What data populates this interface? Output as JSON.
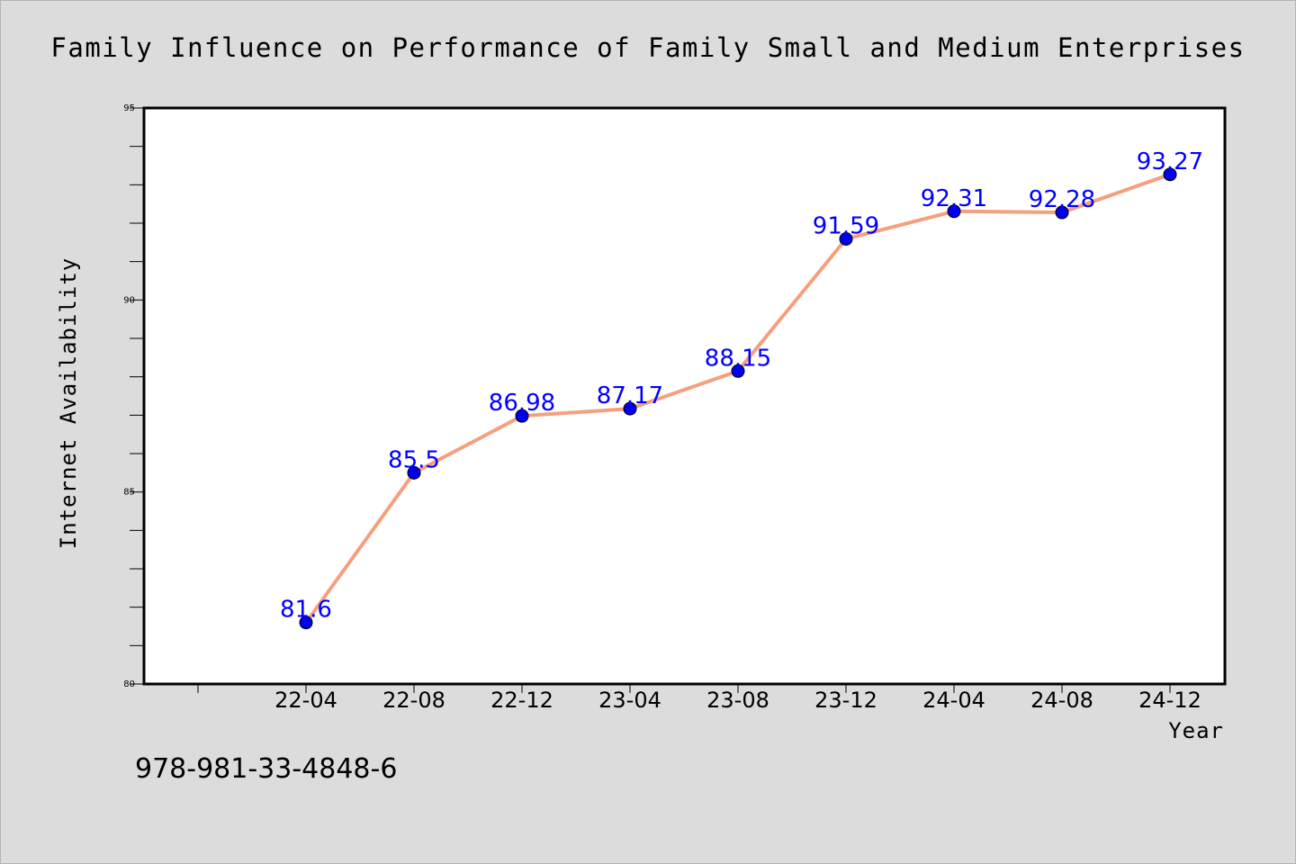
{
  "chart_data": {
    "type": "line",
    "title": "Family Influence on Performance of Family Small and Medium Enterprises",
    "xlabel": "Year",
    "ylabel": "Internet Availability",
    "categories": [
      "22-04",
      "22-08",
      "22-12",
      "23-04",
      "23-08",
      "23-12",
      "24-04",
      "24-08",
      "24-12"
    ],
    "series": [
      {
        "values": [
          81.6,
          85.5,
          86.98,
          87.17,
          88.15,
          91.59,
          92.31,
          92.28,
          93.27
        ],
        "data_labels": [
          "81.6",
          "85.5",
          "86.98",
          "87.17",
          "88.15",
          "91.59",
          "92.31",
          "92.28",
          "93.27"
        ],
        "line_color": "#f4a07e",
        "marker_color": "#0000ee"
      }
    ],
    "ylim": [
      80,
      95
    ],
    "yticks": [
      "80",
      "85",
      "90",
      "95"
    ],
    "grid": false,
    "legend": "none"
  },
  "footer": {
    "isbn": "978-981-33-4848-6"
  },
  "colors": {
    "background": "#dcdcdc",
    "plot_background": "#ffffff",
    "data_label": "#0000ff"
  }
}
